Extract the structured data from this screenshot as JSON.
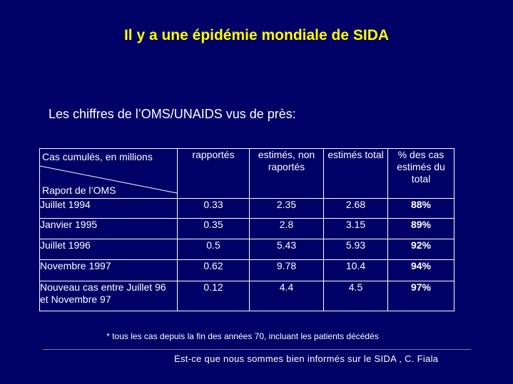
{
  "title": "Il y a une épidémie mondiale de SIDA",
  "subtitle": "Les chiffres de l’OMS/UNAIDS vus de près:",
  "table": {
    "corner_top": "Cas cumulés, en  millions",
    "corner_bottom": "Raport de l’OMS",
    "headers": [
      "rapportés",
      "estimés, non raportés",
      "estimés total",
      "% des cas estimés du total"
    ],
    "rows": [
      {
        "label": "Juillet 1994",
        "values": [
          "0.33",
          "2.35",
          "2.68",
          "88%"
        ]
      },
      {
        "label": "Janvier 1995",
        "values": [
          "0.35",
          "2.8",
          "3.15",
          "89%"
        ]
      },
      {
        "label": "Juillet 1996",
        "values": [
          "0.5",
          "5.43",
          "5.93",
          "92%"
        ]
      },
      {
        "label": "Novembre 1997",
        "values": [
          "0.62",
          "9.78",
          "10.4",
          "94%"
        ]
      },
      {
        "label": "Nouveau  cas entre Juillet 96 et Novembre 97",
        "values": [
          "0.12",
          "4.4",
          "4.5",
          "97%"
        ]
      }
    ]
  },
  "footnote": "* tous les cas depuis la fin des années 70, incluant les patients décédés",
  "footer": "Est-ce que nous sommes bien informés sur le SIDA , C. Fiala",
  "colors": {
    "background": "#000066",
    "title": "#ffff00",
    "text": "#ffffff"
  }
}
